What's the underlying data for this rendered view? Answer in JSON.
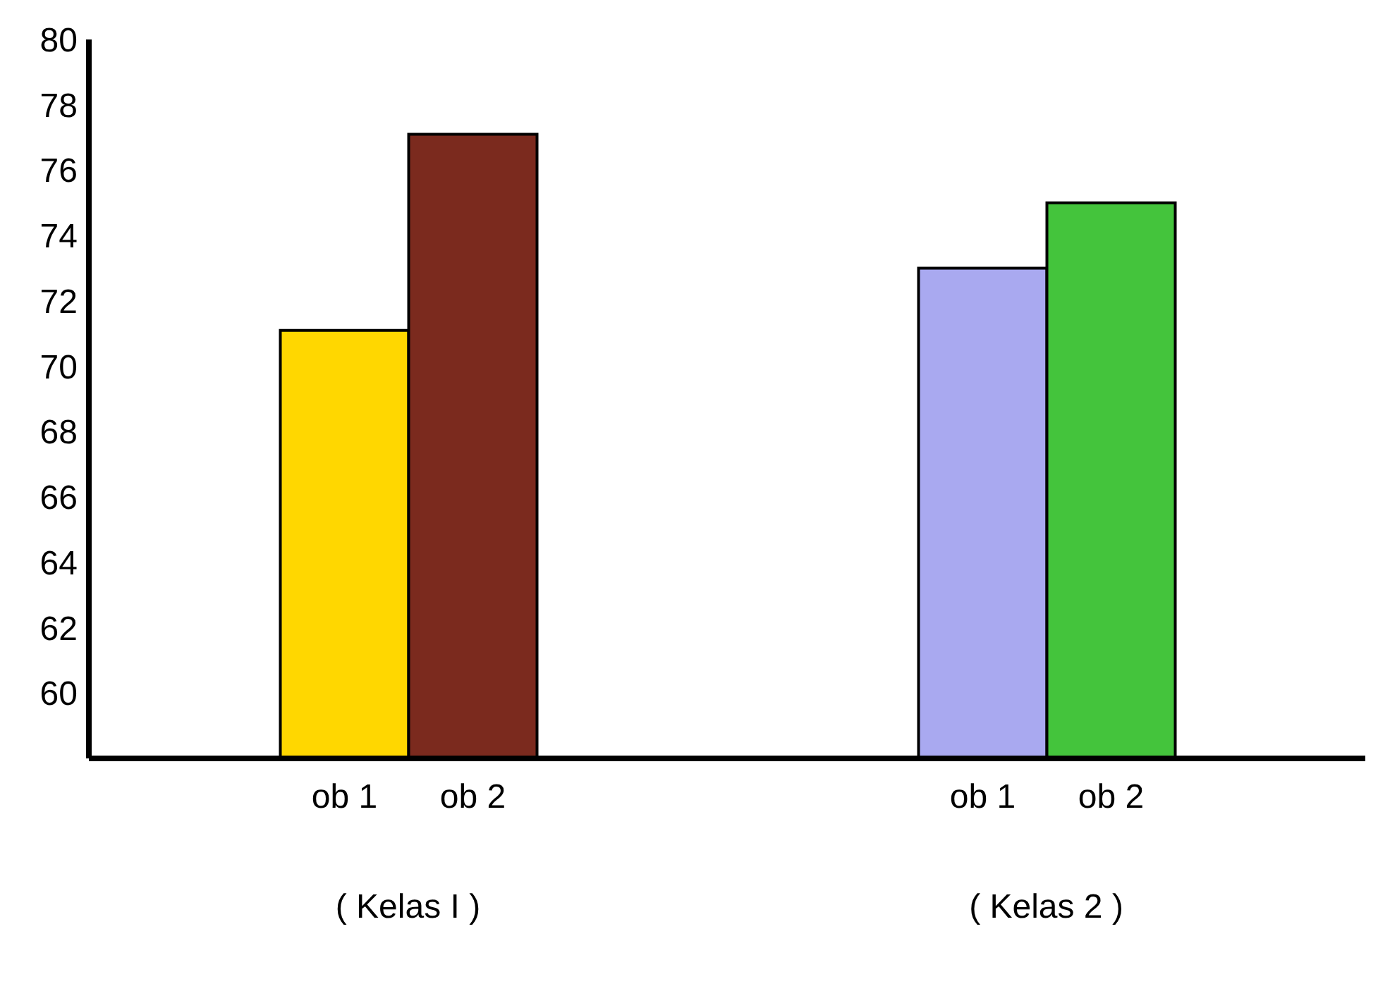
{
  "chart_data": {
    "type": "bar",
    "categories": [
      "( Kelas I )",
      "( Kelas 2 )"
    ],
    "series": [
      {
        "name": "ob 1",
        "colors": [
          "#ffd700",
          "#a9a9f0"
        ],
        "values": [
          71.1,
          73.0
        ]
      },
      {
        "name": "ob 2",
        "colors": [
          "#7b2a1e",
          "#44c43c"
        ],
        "values": [
          77.1,
          75.0
        ]
      }
    ],
    "ylim": [
      58,
      80
    ],
    "yticks": [
      60,
      62,
      64,
      66,
      68,
      70,
      72,
      74,
      76,
      78,
      80
    ],
    "grid": false,
    "legend": false
  }
}
